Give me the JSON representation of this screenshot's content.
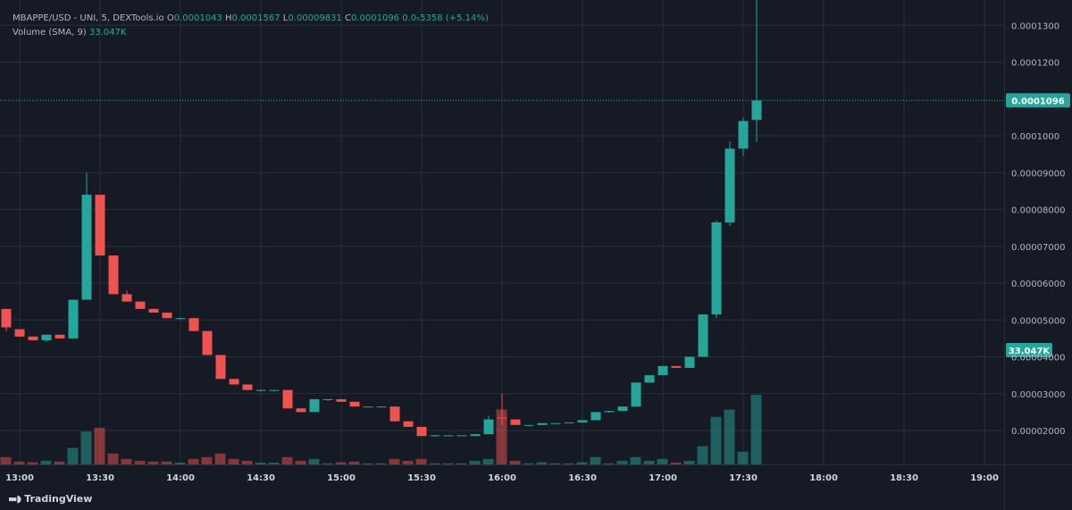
{
  "header": {
    "symbol": "MBAPPE/USD - UNI, 5, DEXTools.io",
    "open_label": "O",
    "open": "0.0001043",
    "high_label": "H",
    "high": "0.0001567",
    "low_label": "L",
    "low": "0.00009831",
    "close_label": "C",
    "close": "0.0001096",
    "change": "0.0₅5358 (+5.14%)",
    "volume_label": "Volume (SMA, 9)",
    "volume_value": "33.047K"
  },
  "footer": {
    "brand": "TradingView"
  },
  "colors": {
    "up": "#26a69a",
    "down": "#ef5350",
    "background": "#161a25",
    "grid": "#2a2e39",
    "text": "#b2b5be"
  },
  "chart_data": {
    "type": "candlestick",
    "x_ticks": [
      "13:00",
      "13:30",
      "14:00",
      "14:30",
      "15:00",
      "15:30",
      "16:00",
      "16:30",
      "17:00",
      "17:30",
      "18:00",
      "18:30",
      "19:00"
    ],
    "y_ticks": [
      "0.00002000",
      "0.00003000",
      "0.00004000",
      "0.00005000",
      "0.00006000",
      "0.00007000",
      "0.00008000",
      "0.00009000",
      "0.0001000",
      "0.0001200",
      "0.0001300"
    ],
    "y_tick_values": [
      2e-05,
      3e-05,
      4e-05,
      5e-05,
      6e-05,
      7e-05,
      8e-05,
      9e-05,
      0.0001,
      0.00012,
      0.00013
    ],
    "ylim": [
      1.16e-05,
      0.000135
    ],
    "last_price": 0.0001096,
    "last_price_label": "0.0001096",
    "volume_label": "33.047K",
    "candles": [
      {
        "t": "12:55",
        "o": 5.3e-05,
        "h": 5.3e-05,
        "l": 4.7e-05,
        "c": 4.8e-05,
        "v": 2
      },
      {
        "t": "13:00",
        "o": 4.75e-05,
        "h": 4.75e-05,
        "l": 4.55e-05,
        "c": 4.55e-05,
        "v": 0.8
      },
      {
        "t": "13:05",
        "o": 4.55e-05,
        "h": 4.55e-05,
        "l": 4.45e-05,
        "c": 4.45e-05,
        "v": 0.6
      },
      {
        "t": "13:10",
        "o": 4.45e-05,
        "h": 4.6e-05,
        "l": 4.4e-05,
        "c": 4.6e-05,
        "v": 1
      },
      {
        "t": "13:15",
        "o": 4.6e-05,
        "h": 4.6e-05,
        "l": 4.5e-05,
        "c": 4.5e-05,
        "v": 0.8
      },
      {
        "t": "13:20",
        "o": 4.5e-05,
        "h": 5.55e-05,
        "l": 4.5e-05,
        "c": 5.55e-05,
        "v": 4.5
      },
      {
        "t": "13:25",
        "o": 5.55e-05,
        "h": 9e-05,
        "l": 5.55e-05,
        "c": 8.4e-05,
        "v": 9
      },
      {
        "t": "13:30",
        "o": 8.4e-05,
        "h": 8.4e-05,
        "l": 6.75e-05,
        "c": 6.75e-05,
        "v": 10
      },
      {
        "t": "13:35",
        "o": 6.75e-05,
        "h": 6.75e-05,
        "l": 5.7e-05,
        "c": 5.7e-05,
        "v": 3
      },
      {
        "t": "13:40",
        "o": 5.7e-05,
        "h": 5.8e-05,
        "l": 5.5e-05,
        "c": 5.5e-05,
        "v": 1.5
      },
      {
        "t": "13:45",
        "o": 5.5e-05,
        "h": 5.5e-05,
        "l": 5.3e-05,
        "c": 5.3e-05,
        "v": 1
      },
      {
        "t": "13:50",
        "o": 5.3e-05,
        "h": 5.3e-05,
        "l": 5.2e-05,
        "c": 5.2e-05,
        "v": 0.8
      },
      {
        "t": "13:55",
        "o": 5.2e-05,
        "h": 5.2e-05,
        "l": 5.05e-05,
        "c": 5.05e-05,
        "v": 0.8
      },
      {
        "t": "14:00",
        "o": 5.05e-05,
        "h": 5.05e-05,
        "l": 5e-05,
        "c": 5.05e-05,
        "v": 0.5
      },
      {
        "t": "14:05",
        "o": 5.05e-05,
        "h": 5.05e-05,
        "l": 4.7e-05,
        "c": 4.7e-05,
        "v": 1.5
      },
      {
        "t": "14:10",
        "o": 4.7e-05,
        "h": 4.7e-05,
        "l": 4.05e-05,
        "c": 4.05e-05,
        "v": 2
      },
      {
        "t": "14:15",
        "o": 4.05e-05,
        "h": 4.05e-05,
        "l": 3.4e-05,
        "c": 3.4e-05,
        "v": 3
      },
      {
        "t": "14:20",
        "o": 3.4e-05,
        "h": 3.4e-05,
        "l": 3.25e-05,
        "c": 3.25e-05,
        "v": 1.5
      },
      {
        "t": "14:25",
        "o": 3.25e-05,
        "h": 3.25e-05,
        "l": 3.1e-05,
        "c": 3.1e-05,
        "v": 1
      },
      {
        "t": "14:30",
        "o": 3.1e-05,
        "h": 3.1e-05,
        "l": 3.05e-05,
        "c": 3.1e-05,
        "v": 0.5
      },
      {
        "t": "14:35",
        "o": 3.1e-05,
        "h": 3.1e-05,
        "l": 3.05e-05,
        "c": 3.1e-05,
        "v": 0.5
      },
      {
        "t": "14:40",
        "o": 3.1e-05,
        "h": 3.1e-05,
        "l": 2.6e-05,
        "c": 2.6e-05,
        "v": 2
      },
      {
        "t": "14:45",
        "o": 2.6e-05,
        "h": 2.6e-05,
        "l": 2.5e-05,
        "c": 2.5e-05,
        "v": 1
      },
      {
        "t": "14:50",
        "o": 2.5e-05,
        "h": 2.85e-05,
        "l": 2.5e-05,
        "c": 2.85e-05,
        "v": 1.5
      },
      {
        "t": "14:55",
        "o": 2.85e-05,
        "h": 2.85e-05,
        "l": 2.8e-05,
        "c": 2.85e-05,
        "v": 0.3
      },
      {
        "t": "15:00",
        "o": 2.85e-05,
        "h": 2.85e-05,
        "l": 2.78e-05,
        "c": 2.78e-05,
        "v": 0.6
      },
      {
        "t": "15:05",
        "o": 2.78e-05,
        "h": 2.78e-05,
        "l": 2.65e-05,
        "c": 2.65e-05,
        "v": 0.8
      },
      {
        "t": "15:10",
        "o": 2.65e-05,
        "h": 2.65e-05,
        "l": 2.62e-05,
        "c": 2.65e-05,
        "v": 0.3
      },
      {
        "t": "15:15",
        "o": 2.65e-05,
        "h": 2.65e-05,
        "l": 2.62e-05,
        "c": 2.65e-05,
        "v": 0.3
      },
      {
        "t": "15:20",
        "o": 2.65e-05,
        "h": 2.65e-05,
        "l": 2.25e-05,
        "c": 2.25e-05,
        "v": 1.5
      },
      {
        "t": "15:25",
        "o": 2.25e-05,
        "h": 2.25e-05,
        "l": 2.1e-05,
        "c": 2.1e-05,
        "v": 1
      },
      {
        "t": "15:30",
        "o": 2.1e-05,
        "h": 2.1e-05,
        "l": 1.85e-05,
        "c": 1.85e-05,
        "v": 1.5
      },
      {
        "t": "15:35",
        "o": 1.85e-05,
        "h": 1.87e-05,
        "l": 1.83e-05,
        "c": 1.87e-05,
        "v": 0.3
      },
      {
        "t": "15:40",
        "o": 1.87e-05,
        "h": 1.87e-05,
        "l": 1.84e-05,
        "c": 1.87e-05,
        "v": 0.3
      },
      {
        "t": "15:45",
        "o": 1.87e-05,
        "h": 1.87e-05,
        "l": 1.85e-05,
        "c": 1.87e-05,
        "v": 0.3
      },
      {
        "t": "15:50",
        "o": 1.85e-05,
        "h": 1.9e-05,
        "l": 1.85e-05,
        "c": 1.9e-05,
        "v": 1
      },
      {
        "t": "15:55",
        "o": 1.9e-05,
        "h": 2.4e-05,
        "l": 1.9e-05,
        "c": 2.3e-05,
        "v": 1.5
      },
      {
        "t": "16:00",
        "o": 2.35e-05,
        "h": 3e-05,
        "l": 2.15e-05,
        "c": 2.33e-05,
        "v": 15
      },
      {
        "t": "16:05",
        "o": 2.3e-05,
        "h": 2.3e-05,
        "l": 2.15e-05,
        "c": 2.15e-05,
        "v": 1
      },
      {
        "t": "16:10",
        "o": 2.15e-05,
        "h": 2.15e-05,
        "l": 2.12e-05,
        "c": 2.15e-05,
        "v": 0.3
      },
      {
        "t": "16:15",
        "o": 2.15e-05,
        "h": 2.2e-05,
        "l": 2.15e-05,
        "c": 2.2e-05,
        "v": 0.6
      },
      {
        "t": "16:20",
        "o": 2.2e-05,
        "h": 2.2e-05,
        "l": 2.18e-05,
        "c": 2.2e-05,
        "v": 0.3
      },
      {
        "t": "16:25",
        "o": 2.2e-05,
        "h": 2.22e-05,
        "l": 2.2e-05,
        "c": 2.22e-05,
        "v": 0.3
      },
      {
        "t": "16:30",
        "o": 2.22e-05,
        "h": 2.28e-05,
        "l": 2.22e-05,
        "c": 2.28e-05,
        "v": 0.6
      },
      {
        "t": "16:35",
        "o": 2.28e-05,
        "h": 2.5e-05,
        "l": 2.28e-05,
        "c": 2.5e-05,
        "v": 2
      },
      {
        "t": "16:40",
        "o": 2.5e-05,
        "h": 2.53e-05,
        "l": 2.48e-05,
        "c": 2.53e-05,
        "v": 0.3
      },
      {
        "t": "16:45",
        "o": 2.53e-05,
        "h": 2.65e-05,
        "l": 2.53e-05,
        "c": 2.65e-05,
        "v": 1
      },
      {
        "t": "16:50",
        "o": 2.65e-05,
        "h": 3.3e-05,
        "l": 2.65e-05,
        "c": 3.3e-05,
        "v": 2
      },
      {
        "t": "16:55",
        "o": 3.3e-05,
        "h": 3.5e-05,
        "l": 3.3e-05,
        "c": 3.5e-05,
        "v": 1
      },
      {
        "t": "17:00",
        "o": 3.5e-05,
        "h": 3.75e-05,
        "l": 3.5e-05,
        "c": 3.75e-05,
        "v": 1.5
      },
      {
        "t": "17:05",
        "o": 3.75e-05,
        "h": 3.75e-05,
        "l": 3.7e-05,
        "c": 3.7e-05,
        "v": 0.5
      },
      {
        "t": "17:10",
        "o": 3.7e-05,
        "h": 4e-05,
        "l": 3.7e-05,
        "c": 4e-05,
        "v": 1
      },
      {
        "t": "17:15",
        "o": 4e-05,
        "h": 5.15e-05,
        "l": 4e-05,
        "c": 5.15e-05,
        "v": 5
      },
      {
        "t": "17:20",
        "o": 5.15e-05,
        "h": 7.7e-05,
        "l": 5.05e-05,
        "c": 7.65e-05,
        "v": 13
      },
      {
        "t": "17:25",
        "o": 7.65e-05,
        "h": 9.85e-05,
        "l": 7.55e-05,
        "c": 9.65e-05,
        "v": 15
      },
      {
        "t": "17:30",
        "o": 9.65e-05,
        "h": 0.000105,
        "l": 9.45e-05,
        "c": 0.000104,
        "v": 3.5
      },
      {
        "t": "17:35",
        "o": 0.0001043,
        "h": 0.0001567,
        "l": 9.831e-05,
        "c": 0.0001096,
        "v": 19
      }
    ]
  }
}
